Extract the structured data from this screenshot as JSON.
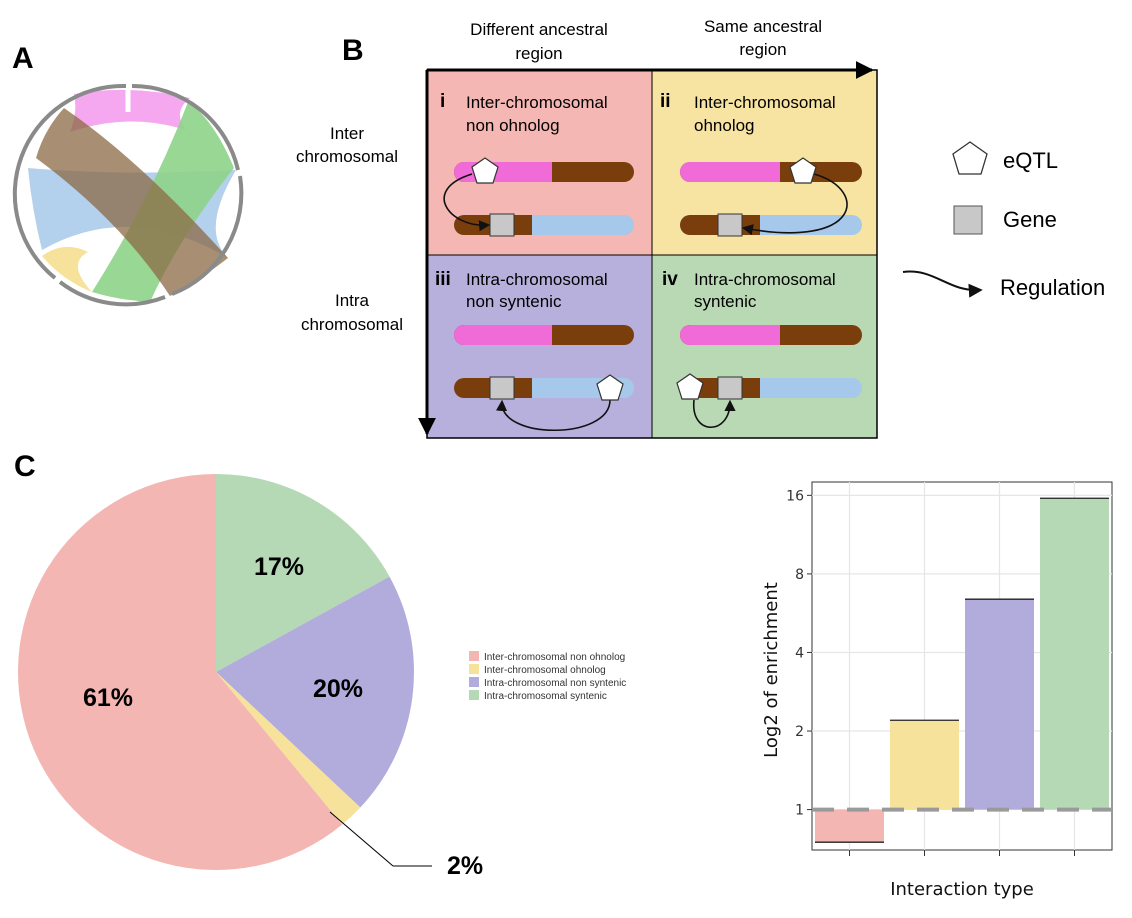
{
  "panels": {
    "a": "A",
    "b": "B",
    "c": "C"
  },
  "panel_b": {
    "col_headers": [
      [
        "Different ancestral",
        "region"
      ],
      [
        "Same ancestral",
        "region"
      ]
    ],
    "row_labels": [
      [
        "Inter",
        "chromosomal"
      ],
      [
        "Intra",
        "chromosomal"
      ]
    ],
    "cells": [
      {
        "num": "i",
        "lines": [
          "Inter-chromosomal",
          "non ohnolog"
        ],
        "bg": "#f4b7b3"
      },
      {
        "num": "ii",
        "lines": [
          "Inter-chromosomal",
          "ohnolog"
        ],
        "bg": "#f7e4a2"
      },
      {
        "num": "iii",
        "lines": [
          "Intra-chromosomal",
          "non syntenic"
        ],
        "bg": "#b7b0dc"
      },
      {
        "num": "iv",
        "lines": [
          "Intra-chromosomal",
          "syntenic"
        ],
        "bg": "#b9d8b4"
      }
    ],
    "key": {
      "eqtl": "eQTL",
      "gene": "Gene",
      "regulation": "Regulation"
    }
  },
  "colors": {
    "inter_non_ohnolog": "#f4b6b3",
    "inter_ohnolog": "#f6e29b",
    "intra_non_syntenic": "#b2acdc",
    "intra_syntenic": "#b5d8b5",
    "chrom_pink": "#f06ad8",
    "chrom_brown": "#7a3d0c",
    "chrom_blue": "#a6c8ea"
  },
  "pie_chart": {
    "type": "pie",
    "slices": [
      {
        "label": "Inter-chromosomal non ohnolog",
        "value": 61,
        "pct_label": "61%"
      },
      {
        "label": "Inter-chromosomal ohnolog",
        "value": 2,
        "pct_label": "2%"
      },
      {
        "label": "Intra-chromosomal non syntenic",
        "value": 20,
        "pct_label": "20%"
      },
      {
        "label": "Intra-chromosomal syntenic",
        "value": 17,
        "pct_label": "17%"
      }
    ],
    "legend": [
      "Inter-chromosomal non ohnolog",
      "Inter-chromosomal ohnolog",
      "Intra-chromosomal non syntenic",
      "Intra-chromosomal syntenic"
    ]
  },
  "chart_data": {
    "type": "bar",
    "categories": [
      "Inter-chromosomal non ohnolog",
      "Inter-chromosomal ohnolog",
      "Intra-chromosomal non syntenic",
      "Intra-chromosomal syntenic"
    ],
    "values": [
      0.75,
      2.2,
      6.4,
      15.6
    ],
    "xlabel": "Interaction type",
    "ylabel": "Log2 of enrichment",
    "y_scale": "log2",
    "y_ticks": [
      1,
      2,
      4,
      8,
      16
    ],
    "baseline": 1,
    "grid": true
  }
}
